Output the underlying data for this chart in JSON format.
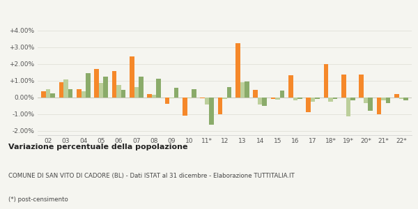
{
  "years": [
    "02",
    "03",
    "04",
    "05",
    "06",
    "07",
    "08",
    "09",
    "10",
    "11*",
    "12",
    "13",
    "14",
    "15",
    "16",
    "17",
    "18*",
    "19*",
    "20*",
    "21*",
    "22*"
  ],
  "san_vito": [
    0.35,
    0.9,
    0.5,
    1.7,
    1.55,
    2.45,
    0.2,
    -0.4,
    -1.1,
    -0.05,
    -1.0,
    3.25,
    0.45,
    -0.1,
    1.3,
    -0.9,
    2.0,
    1.35,
    1.35,
    -1.0,
    0.2
  ],
  "provincia_bl": [
    0.5,
    1.05,
    0.35,
    0.85,
    0.75,
    0.6,
    0.15,
    -0.05,
    -0.05,
    -0.45,
    -0.1,
    0.9,
    -0.45,
    -0.15,
    -0.2,
    -0.25,
    -0.25,
    -1.15,
    -0.35,
    -0.2,
    -0.1
  ],
  "veneto": [
    0.25,
    0.5,
    1.45,
    1.25,
    0.45,
    1.25,
    1.1,
    0.55,
    0.5,
    -1.65,
    0.6,
    0.95,
    -0.5,
    0.4,
    -0.1,
    -0.1,
    -0.1,
    -0.2,
    -0.8,
    -0.35,
    -0.2
  ],
  "color_san_vito": "#f5882a",
  "color_provincia": "#bccf9b",
  "color_veneto": "#8aab6a",
  "title": "Variazione percentuale della popolazione",
  "subtitle": "COMUNE DI SAN VITO DI CADORE (BL) - Dati ISTAT al 31 dicembre - Elaborazione TUTTITALIA.IT",
  "footnote": "(*) post-censimento",
  "ylim_min": -2.25,
  "ylim_max": 4.0,
  "yticks": [
    -2.0,
    -1.0,
    0.0,
    1.0,
    2.0,
    3.0,
    4.0
  ],
  "ytick_labels": [
    "-2.00%",
    "-1.00%",
    "0.00%",
    "+1.00%",
    "+2.00%",
    "+3.00%",
    "+4.00%"
  ],
  "background_color": "#f5f5f0",
  "grid_color": "#e0e0d8"
}
